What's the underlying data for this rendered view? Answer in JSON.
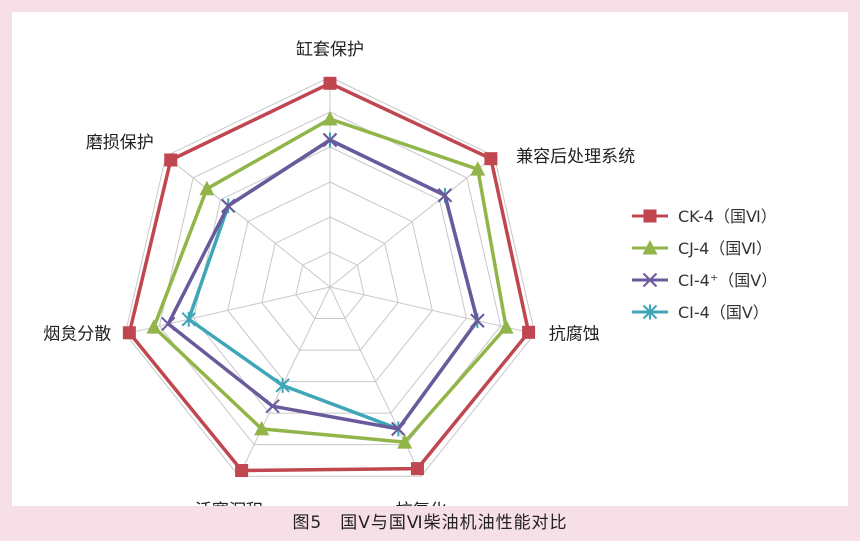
{
  "caption": "图5　国Ⅴ与国Ⅵ柴油机油性能对比",
  "chart_data": {
    "type": "radar",
    "axes": [
      "缸套保护",
      "兼容后处理系统",
      "抗腐蚀",
      "抗氧化",
      "活塞沉积",
      "烟炱分散",
      "磨损保护"
    ],
    "rmax": 10,
    "rings": 6,
    "series": [
      {
        "name": "CK-4（国Ⅵ）",
        "color": "#c0464f",
        "marker": "square",
        "values": [
          9.7,
          9.8,
          9.7,
          9.6,
          9.7,
          9.8,
          9.7
        ]
      },
      {
        "name": "CJ-4（国Ⅵ）",
        "color": "#92b54a",
        "marker": "triangle",
        "values": [
          8.0,
          9.0,
          8.6,
          8.2,
          7.5,
          8.6,
          7.5
        ]
      },
      {
        "name": "CI-4⁺（国Ⅴ）",
        "color": "#6b5a9b",
        "marker": "x",
        "values": [
          7.0,
          7.0,
          7.2,
          7.5,
          6.3,
          7.9,
          6.2
        ]
      },
      {
        "name": "CI-4（国Ⅴ）",
        "color": "#3fa6b8",
        "marker": "asterisk",
        "values": [
          7.0,
          7.0,
          7.2,
          7.5,
          5.2,
          6.9,
          6.2
        ]
      }
    ],
    "legend_position": "right"
  }
}
